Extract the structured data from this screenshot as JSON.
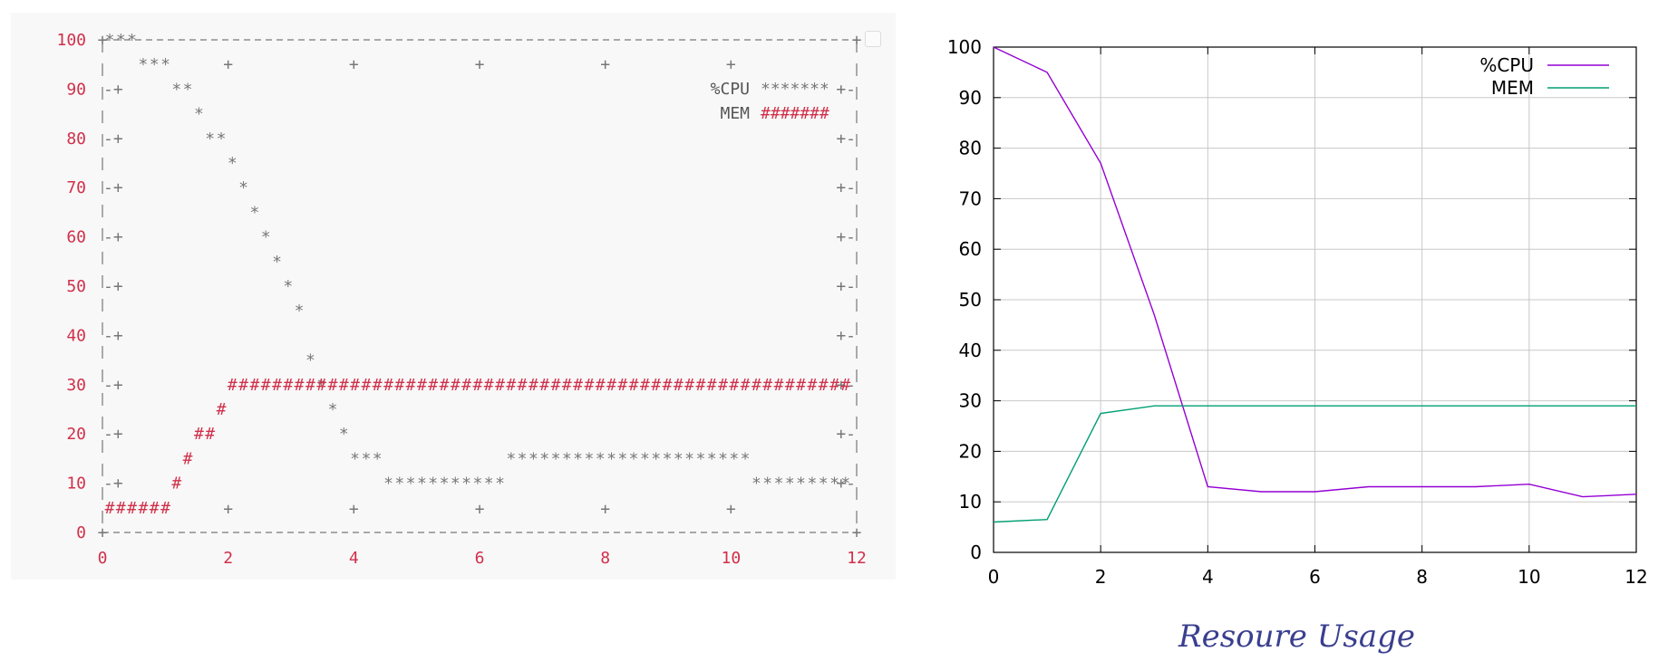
{
  "caption": "Resoure Usage",
  "copy_button": {
    "icon": "copy-icon"
  },
  "colors": {
    "cpu": "#9400d3",
    "mem": "#009e73",
    "ascii_axis_label": "#d0304a",
    "ascii_frame": "#777777",
    "ascii_mem": "#d0304a",
    "ascii_cpu": "#777777",
    "grid": "#c8c8c8",
    "caption": "#3a3f8f"
  },
  "chart_data": [
    {
      "type": "line",
      "style": "ascii-terminal-plot",
      "x": [
        0,
        1,
        2,
        3,
        4,
        5,
        6,
        7,
        8,
        9,
        10,
        11,
        12
      ],
      "series": [
        {
          "name": "%CPU",
          "marker": "*******",
          "values": [
            100,
            95,
            77,
            47,
            13,
            12,
            12,
            13,
            13,
            13,
            13.5,
            11,
            11.5
          ]
        },
        {
          "name": "MEM",
          "marker": "#######",
          "values": [
            6,
            6.5,
            27.5,
            29,
            29,
            29,
            29,
            29,
            29,
            29,
            29,
            29,
            29
          ]
        }
      ],
      "xlim": [
        0,
        12
      ],
      "ylim": [
        0,
        100
      ],
      "xticks": [
        0,
        2,
        4,
        6,
        8,
        10,
        12
      ],
      "yticks": [
        0,
        10,
        20,
        30,
        40,
        50,
        60,
        70,
        80,
        90,
        100
      ],
      "legend": "top-right",
      "grid": false
    },
    {
      "type": "line",
      "x": [
        0,
        1,
        2,
        3,
        4,
        5,
        6,
        7,
        8,
        9,
        10,
        11,
        12
      ],
      "series": [
        {
          "name": "%CPU",
          "values": [
            100,
            95,
            77,
            47,
            13,
            12,
            12,
            13,
            13,
            13,
            13.5,
            11,
            11.5
          ]
        },
        {
          "name": "MEM",
          "values": [
            6,
            6.5,
            27.5,
            29,
            29,
            29,
            29,
            29,
            29,
            29,
            29,
            29,
            29
          ]
        }
      ],
      "xlim": [
        0,
        12
      ],
      "ylim": [
        0,
        100
      ],
      "xticks": [
        0,
        2,
        4,
        6,
        8,
        10,
        12
      ],
      "yticks": [
        0,
        10,
        20,
        30,
        40,
        50,
        60,
        70,
        80,
        90,
        100
      ],
      "legend": "top-right",
      "grid": true
    }
  ]
}
